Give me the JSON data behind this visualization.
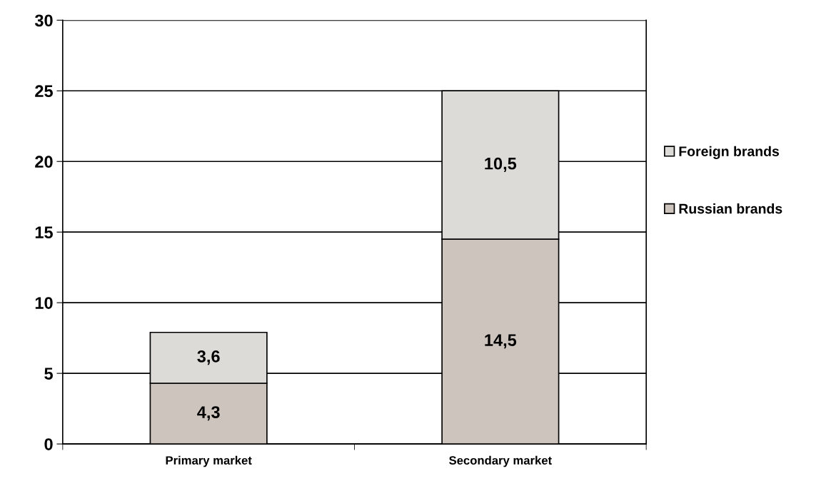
{
  "chart_data": {
    "type": "bar",
    "stacked": true,
    "categories": [
      "Primary market",
      "Secondary market"
    ],
    "series": [
      {
        "name": "Russian brands",
        "color": "#cdc4be",
        "values": [
          4.3,
          14.5
        ],
        "value_labels": [
          "4,3",
          "14,5"
        ]
      },
      {
        "name": "Foreign brands",
        "color": "#dddbd7",
        "values": [
          3.6,
          10.5
        ],
        "value_labels": [
          "3,6",
          "10,5"
        ]
      }
    ],
    "ylim": [
      0,
      30
    ],
    "yticks": [
      0,
      5,
      10,
      15,
      20,
      25,
      30
    ],
    "grid": "y",
    "legend": "right"
  }
}
